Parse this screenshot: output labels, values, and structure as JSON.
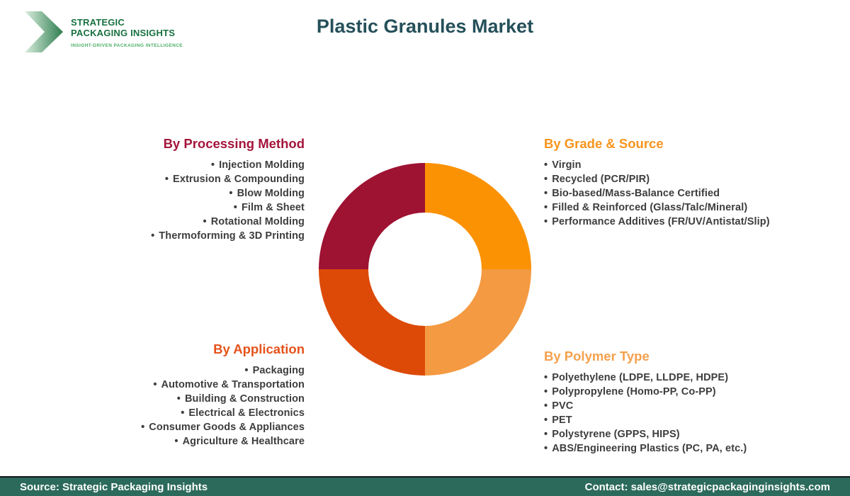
{
  "header": {
    "title": "Plastic Granules Market",
    "title_color": "#25505A",
    "logo": {
      "name_line1": "STRATEGIC",
      "name_line2": "PACKAGING INSIGHTS",
      "name_color": "#177140",
      "tagline": "INSIGHT-DRIVEN PACKAGING INTELLIGENCE",
      "tagline_color": "#4CAE68",
      "chevron_gradient_start": "#D9EEDD",
      "chevron_gradient_end": "#2E7D4F"
    }
  },
  "chart_data": {
    "type": "pie",
    "subtype": "donut",
    "title": "Plastic Granules Market",
    "inner_radius_ratio": 0.53,
    "legend_position": "none",
    "segments": [
      {
        "label": "By Processing Method",
        "value": 25,
        "color": "#9E1232",
        "position": "top-left"
      },
      {
        "label": "By Grade & Source",
        "value": 25,
        "color": "#FB9203",
        "position": "top-right"
      },
      {
        "label": "By Polymer Type",
        "value": 25,
        "color": "#F49A42",
        "position": "bottom-right"
      },
      {
        "label": "By Application",
        "value": 25,
        "color": "#DD4A08",
        "position": "bottom-left"
      }
    ]
  },
  "quadrants": [
    {
      "heading": "By Processing Method",
      "color": "#A4143A",
      "align": "right",
      "items": [
        "Injection Molding",
        "Extrusion & Compounding",
        "Blow Molding",
        "Film & Sheet",
        "Rotational Molding",
        "Thermoforming & 3D Printing"
      ]
    },
    {
      "heading": "By Grade & Source",
      "color": "#F8941D",
      "align": "left",
      "items": [
        "Virgin",
        "Recycled (PCR/PIR)",
        "Bio-based/Mass-Balance Certified",
        "Filled & Reinforced (Glass/Talc/Mineral)",
        "Performance Additives (FR/UV/Antistat/Slip)"
      ]
    },
    {
      "heading": "By Application",
      "color": "#E5531B",
      "align": "right",
      "items": [
        "Packaging",
        "Automotive & Transportation",
        "Building & Construction",
        "Electrical & Electronics",
        "Consumer Goods & Appliances",
        "Agriculture & Healthcare"
      ]
    },
    {
      "heading": "By Polymer Type",
      "color": "#F5A04C",
      "align": "left",
      "items": [
        "Polyethylene (LDPE, LLDPE, HDPE)",
        "Polypropylene (Homo-PP, Co-PP)",
        "PVC",
        "PET",
        "Polystyrene (GPPS, HIPS)",
        "ABS/Engineering Plastics (PC, PA, etc.)"
      ]
    }
  ],
  "footer": {
    "background": "#2C6A5B",
    "source": "Source: Strategic Packaging Insights",
    "contact": "Contact: sales@strategicpackaginginsights.com"
  }
}
